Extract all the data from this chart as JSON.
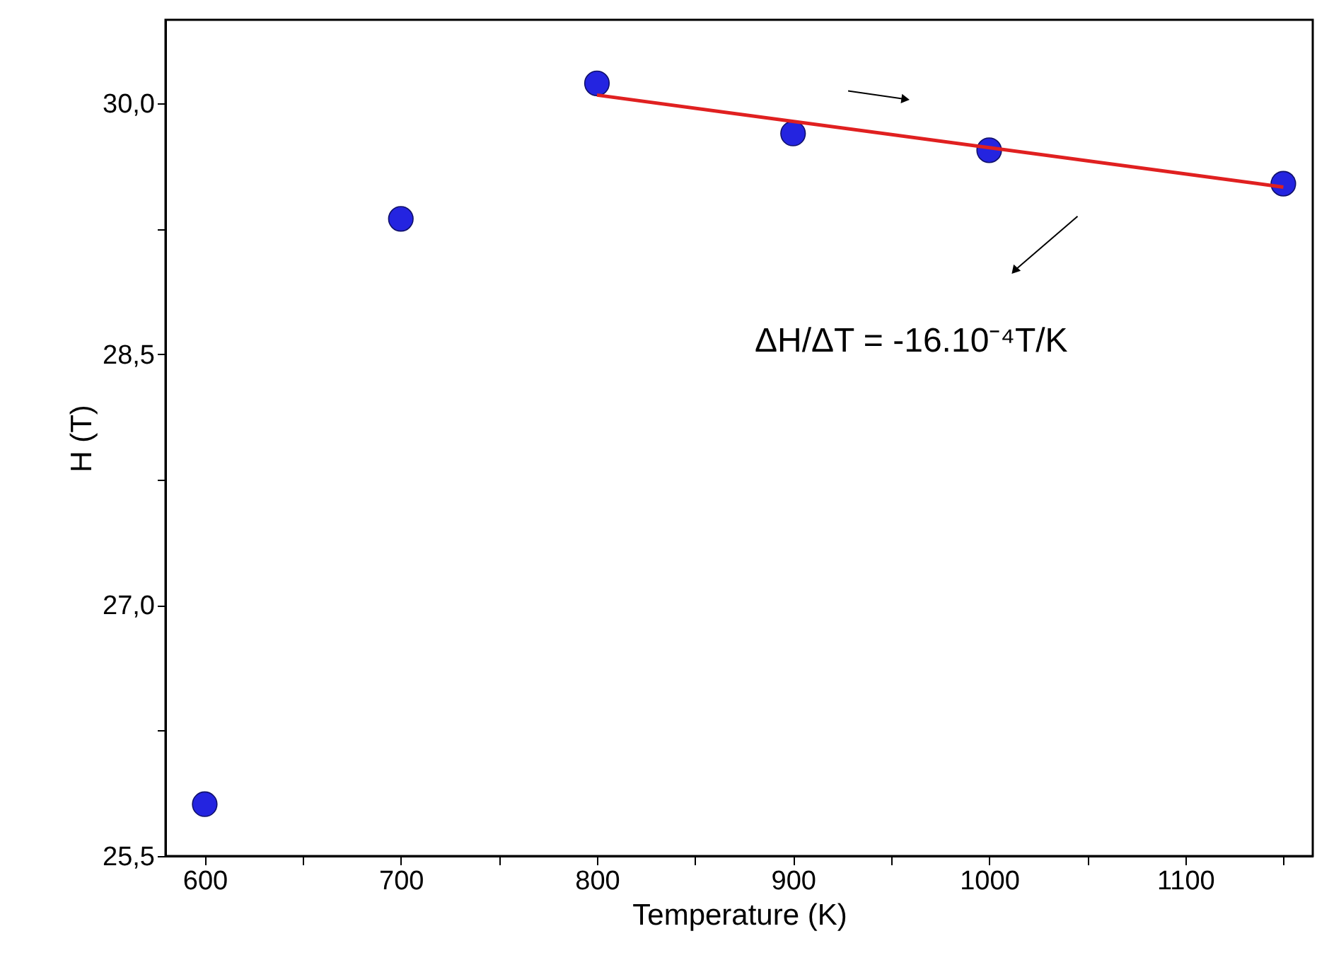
{
  "chart_data": {
    "type": "scatter",
    "xlabel": "Temperature (K)",
    "ylabel": "H (T)",
    "series": [
      {
        "type": "scatter",
        "color": "#2424e0",
        "marker": "circle",
        "x": [
          600,
          700,
          800,
          900,
          1000,
          1150
        ],
        "values": [
          25.81,
          29.31,
          30.12,
          29.82,
          29.72,
          29.52
        ]
      },
      {
        "type": "line",
        "color": "#e02020",
        "line_style": "solid",
        "marker": "none",
        "x": [
          800,
          1150
        ],
        "values": [
          30.05,
          29.5
        ]
      }
    ],
    "annotations": [
      "ΔH/ΔT = -16.10⁻⁴T/K"
    ],
    "xlim": [
      580,
      1165
    ],
    "ylim": [
      25.5,
      30.5
    ],
    "xticks": [
      600,
      {
        "value": 650,
        "label": null
      },
      700,
      {
        "value": 750,
        "label": null
      },
      800,
      {
        "value": 850,
        "label": null
      },
      900,
      {
        "value": 950,
        "label": null
      },
      1000,
      {
        "value": 1050,
        "label": null
      },
      1100,
      {
        "value": 1150,
        "label": null
      }
    ],
    "yticks": [
      {
        "value": 25.5,
        "label": "25,5"
      },
      {
        "value": 26.25,
        "label": null
      },
      {
        "value": 27.0,
        "label": "27,0"
      },
      {
        "value": 27.75,
        "label": null
      },
      {
        "value": 28.5,
        "label": "28,5"
      },
      {
        "value": 29.25,
        "label": null
      },
      {
        "value": 30.0,
        "label": "30,0"
      }
    ],
    "grid": false
  }
}
